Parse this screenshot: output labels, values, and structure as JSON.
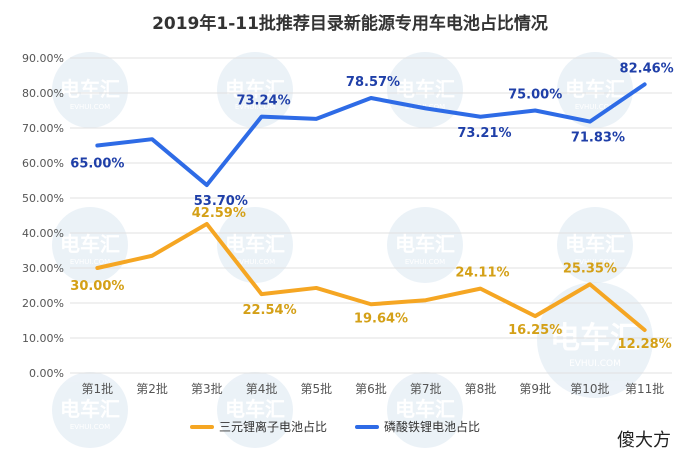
{
  "chart_data": {
    "type": "line",
    "title": "2019年1-11批推荐目录新能源专用车电池占比情况",
    "categories": [
      "第1批",
      "第2批",
      "第3批",
      "第4批",
      "第5批",
      "第6批",
      "第7批",
      "第8批",
      "第9批",
      "第10批",
      "第11批"
    ],
    "y_ticks": [
      "0.00%",
      "10.00%",
      "20.00%",
      "30.00%",
      "40.00%",
      "50.00%",
      "60.00%",
      "70.00%",
      "80.00%",
      "90.00%"
    ],
    "ylim": [
      0,
      90
    ],
    "grid": "horizontal",
    "legend_position": "bottom",
    "series": [
      {
        "name": "三元锂离子电池占比",
        "color": "#F5A623",
        "values": [
          30.0,
          33.5,
          42.59,
          22.54,
          24.3,
          19.64,
          20.8,
          24.11,
          16.25,
          25.35,
          12.28
        ],
        "labels": [
          "30.00%",
          "",
          "42.59%",
          "22.54%",
          "",
          "19.64%",
          "",
          "24.11%",
          "16.25%",
          "25.35%",
          "12.28%"
        ]
      },
      {
        "name": "磷酸铁锂电池占比",
        "color": "#2E6BE6",
        "values": [
          65.0,
          66.8,
          53.7,
          73.24,
          72.6,
          78.57,
          75.6,
          73.21,
          75.0,
          71.83,
          82.46
        ],
        "labels": [
          "65.00%",
          "",
          "53.70%",
          "73.24%",
          "",
          "78.57%",
          "",
          "73.21%",
          "75.00%",
          "71.83%",
          "82.46%"
        ]
      }
    ]
  },
  "watermark": {
    "logo_text": "电车汇",
    "site_text": "EVHUI.COM"
  },
  "corner_brand": "傻大方",
  "colors": {
    "label_orange": "#D4A017",
    "label_blue": "#1F3FA8",
    "axis_text": "#555555",
    "grid": "#E0E0E0",
    "watermark": "#DCE8F2"
  }
}
